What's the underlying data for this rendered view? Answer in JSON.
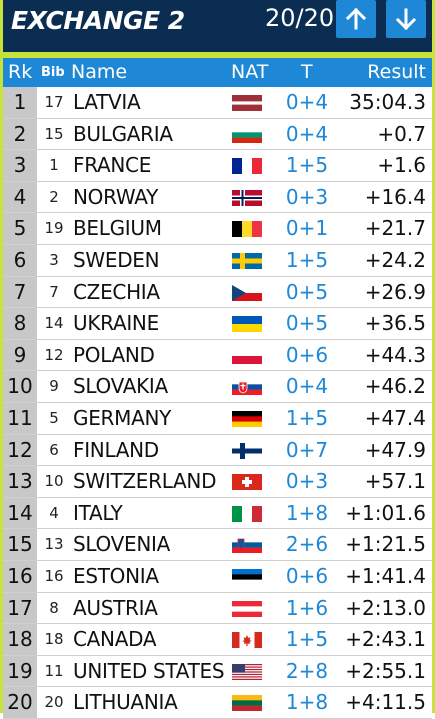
{
  "header": {
    "title": "EXCHANGE 2",
    "counter": "20/20",
    "up_icon": "arrow-up-icon",
    "down_icon": "arrow-down-icon"
  },
  "columns": {
    "rk": "Rk",
    "bib": "Bib",
    "name": "Name",
    "nat": "NAT",
    "t": "T",
    "result": "Result"
  },
  "rows": [
    {
      "rk": "1",
      "bib": "17",
      "name": "LATVIA",
      "nat": "LAT",
      "t": "0+4",
      "result": "35:04.3"
    },
    {
      "rk": "2",
      "bib": "15",
      "name": "BULGARIA",
      "nat": "BUL",
      "t": "0+4",
      "result": "+0.7"
    },
    {
      "rk": "3",
      "bib": "1",
      "name": "FRANCE",
      "nat": "FRA",
      "t": "1+5",
      "result": "+1.6"
    },
    {
      "rk": "4",
      "bib": "2",
      "name": "NORWAY",
      "nat": "NOR",
      "t": "0+3",
      "result": "+16.4"
    },
    {
      "rk": "5",
      "bib": "19",
      "name": "BELGIUM",
      "nat": "BEL",
      "t": "0+1",
      "result": "+21.7"
    },
    {
      "rk": "6",
      "bib": "3",
      "name": "SWEDEN",
      "nat": "SWE",
      "t": "1+5",
      "result": "+24.2"
    },
    {
      "rk": "7",
      "bib": "7",
      "name": "CZECHIA",
      "nat": "CZE",
      "t": "0+5",
      "result": "+26.9"
    },
    {
      "rk": "8",
      "bib": "14",
      "name": "UKRAINE",
      "nat": "UKR",
      "t": "0+5",
      "result": "+36.5"
    },
    {
      "rk": "9",
      "bib": "12",
      "name": "POLAND",
      "nat": "POL",
      "t": "0+6",
      "result": "+44.3"
    },
    {
      "rk": "10",
      "bib": "9",
      "name": "SLOVAKIA",
      "nat": "SVK",
      "t": "0+4",
      "result": "+46.2"
    },
    {
      "rk": "11",
      "bib": "5",
      "name": "GERMANY",
      "nat": "GER",
      "t": "1+5",
      "result": "+47.4"
    },
    {
      "rk": "12",
      "bib": "6",
      "name": "FINLAND",
      "nat": "FIN",
      "t": "0+7",
      "result": "+47.9"
    },
    {
      "rk": "13",
      "bib": "10",
      "name": "SWITZERLAND",
      "nat": "SUI",
      "t": "0+3",
      "result": "+57.1"
    },
    {
      "rk": "14",
      "bib": "4",
      "name": "ITALY",
      "nat": "ITA",
      "t": "1+8",
      "result": "+1:01.6"
    },
    {
      "rk": "15",
      "bib": "13",
      "name": "SLOVENIA",
      "nat": "SLO",
      "t": "2+6",
      "result": "+1:21.5"
    },
    {
      "rk": "16",
      "bib": "16",
      "name": "ESTONIA",
      "nat": "EST",
      "t": "0+6",
      "result": "+1:41.4"
    },
    {
      "rk": "17",
      "bib": "8",
      "name": "AUSTRIA",
      "nat": "AUT",
      "t": "1+6",
      "result": "+2:13.0"
    },
    {
      "rk": "18",
      "bib": "18",
      "name": "CANADA",
      "nat": "CAN",
      "t": "1+5",
      "result": "+2:43.1"
    },
    {
      "rk": "19",
      "bib": "11",
      "name": "UNITED STATES",
      "nat": "USA",
      "t": "2+8",
      "result": "+2:55.1"
    },
    {
      "rk": "20",
      "bib": "20",
      "name": "LITHUANIA",
      "nat": "LTU",
      "t": "1+8",
      "result": "+4:11.5"
    }
  ],
  "colors": {
    "navy": "#0c2d52",
    "blue": "#1e88d6",
    "lime": "#c7e23a",
    "rank_bg": "#c8c8c8"
  }
}
